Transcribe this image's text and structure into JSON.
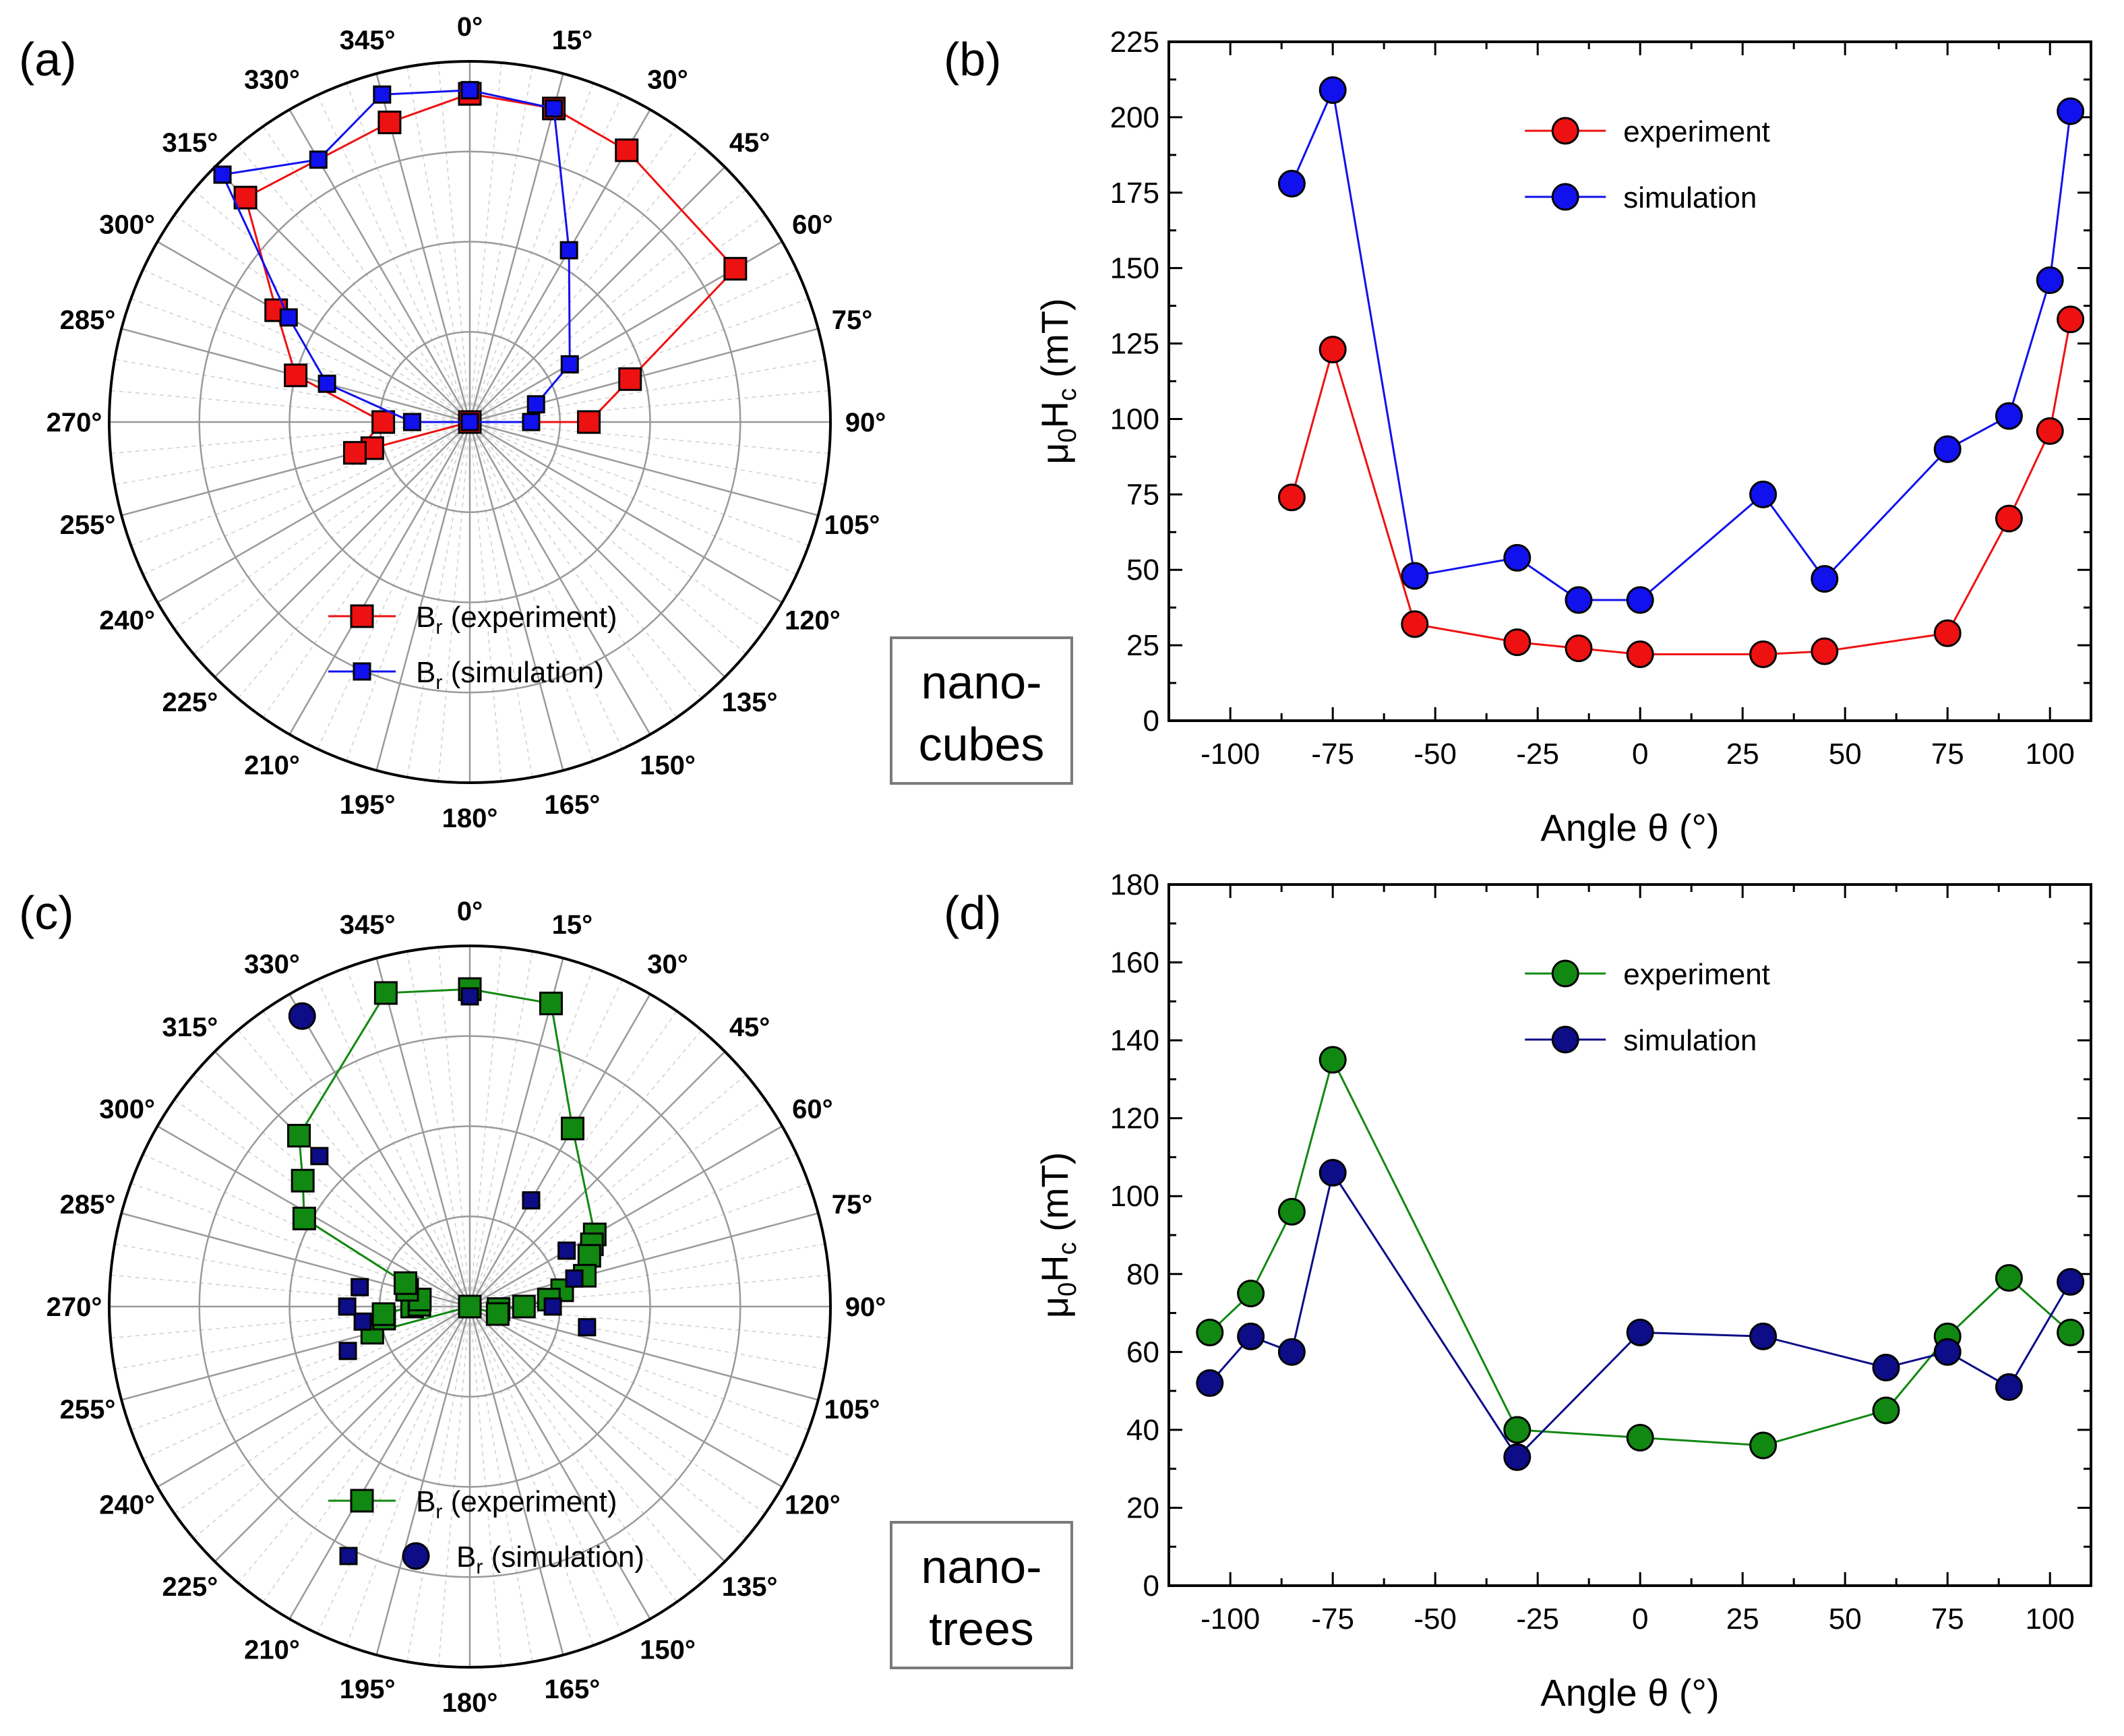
{
  "figure": {
    "panels": {
      "a": "(a)",
      "b": "(b)",
      "c": "(c)",
      "d": "(d)"
    },
    "side_labels": [
      {
        "line1": "nano-",
        "line2": "cubes"
      },
      {
        "line1": "nano-",
        "line2": "trees"
      }
    ],
    "colors": {
      "red": "#ee1111",
      "blue": "#1111ee",
      "green": "#118811",
      "navy": "#0d0d88",
      "grid": "#9a9a9a",
      "axis": "#000000"
    }
  },
  "chart_data": [
    {
      "id": "a",
      "type": "polar",
      "angle_labels": [
        "0°",
        "15°",
        "30°",
        "45°",
        "60°",
        "75°",
        "90°",
        "105°",
        "120°",
        "135°",
        "150°",
        "165°",
        "180°",
        "195°",
        "210°",
        "225°",
        "240°",
        "255°",
        "270°",
        "285°",
        "300°",
        "315°",
        "330°",
        "345°"
      ],
      "rmax": 1.0,
      "rings": [
        0.25,
        0.5,
        0.75,
        1.0
      ],
      "legend": {
        "experiment": "B",
        "experiment_sub": "r",
        "experiment_rest": " (experiment)",
        "simulation": "B",
        "simulation_sub": "r",
        "simulation_rest": " (simulation)"
      },
      "series": [
        {
          "name": "Br (experiment)",
          "color": "red",
          "marker": "square",
          "connected": true,
          "theta": [
            0,
            15,
            30,
            60,
            75,
            90,
            180,
            255,
            255,
            270,
            285,
            300,
            315,
            345,
            360
          ],
          "r": [
            0.91,
            0.9,
            0.87,
            0.85,
            0.46,
            0.33,
            0.0,
            0.28,
            0.33,
            0.24,
            0.5,
            0.62,
            0.88,
            0.86,
            0.91
          ]
        },
        {
          "name": "Br (simulation)",
          "color": "blue",
          "marker": "square-small",
          "connected": true,
          "theta": [
            0,
            15,
            30,
            60,
            75,
            90,
            180,
            270,
            285,
            300,
            315,
            330,
            345,
            360
          ],
          "r": [
            0.92,
            0.9,
            0.55,
            0.32,
            0.19,
            0.17,
            0.0,
            0.16,
            0.41,
            0.58,
            0.97,
            0.84,
            0.94,
            0.92
          ]
        }
      ]
    },
    {
      "id": "b",
      "type": "line",
      "xlabel": "Angle θ (°)",
      "ylabel_main": "μ",
      "ylabel_sub0": "0",
      "ylabel_mid": "H",
      "ylabel_subc": "c",
      "ylabel_end": " (mT)",
      "xlim": [
        -115,
        110
      ],
      "ylim": [
        0,
        225
      ],
      "xticks": [
        -100,
        -75,
        -50,
        -25,
        0,
        25,
        50,
        75,
        100
      ],
      "yticks": [
        0,
        25,
        50,
        75,
        100,
        125,
        150,
        175,
        200,
        225
      ],
      "legend_position": "top-center",
      "series": [
        {
          "name": "experiment",
          "color": "red",
          "x": [
            -85,
            -75,
            -55,
            -30,
            -15,
            0,
            30,
            45,
            75,
            90,
            100,
            105
          ],
          "y": [
            74,
            123,
            32,
            26,
            24,
            22,
            22,
            23,
            29,
            67,
            96,
            133
          ]
        },
        {
          "name": "simulation",
          "color": "blue",
          "x": [
            -85,
            -75,
            -55,
            -30,
            -15,
            0,
            30,
            45,
            75,
            90,
            100,
            105
          ],
          "y": [
            178,
            209,
            48,
            54,
            40,
            40,
            75,
            47,
            90,
            101,
            146,
            202
          ]
        }
      ]
    },
    {
      "id": "c",
      "type": "polar",
      "angle_labels": [
        "0°",
        "15°",
        "30°",
        "45°",
        "60°",
        "75°",
        "90°",
        "105°",
        "120°",
        "135°",
        "150°",
        "165°",
        "180°",
        "195°",
        "210°",
        "225°",
        "240°",
        "255°",
        "270°",
        "285°",
        "300°",
        "315°",
        "330°",
        "345°"
      ],
      "rmax": 1.0,
      "rings": [
        0.25,
        0.5,
        0.75,
        1.0
      ],
      "legend": {
        "experiment": "B",
        "experiment_sub": "r",
        "experiment_rest": " (experiment)",
        "simulation": "B",
        "simulation_sub": "r",
        "simulation_rest": " (simulation)"
      },
      "series": [
        {
          "name": "Br (experiment)",
          "color": "green",
          "marker": "square",
          "connected": true,
          "theta": [
            0,
            15,
            30,
            60,
            63,
            67,
            75,
            80,
            85,
            90,
            95,
            105,
            180,
            255,
            262,
            265,
            270,
            272,
            278,
            285,
            290,
            298,
            307,
            315,
            345,
            360
          ],
          "r": [
            0.88,
            0.87,
            0.57,
            0.4,
            0.38,
            0.36,
            0.33,
            0.26,
            0.22,
            0.15,
            0.08,
            0.08,
            0.0,
            0.28,
            0.24,
            0.24,
            0.16,
            0.14,
            0.14,
            0.18,
            0.19,
            0.52,
            0.58,
            0.67,
            0.9,
            0.88
          ]
        },
        {
          "name": "Br (simulation)",
          "color": "navy",
          "marker": "square-small",
          "connected": false,
          "theta": [
            0,
            30,
            60,
            75,
            90,
            100,
            250,
            262,
            270,
            280,
            315
          ],
          "r": [
            0.86,
            0.34,
            0.31,
            0.3,
            0.23,
            0.33,
            0.36,
            0.3,
            0.34,
            0.31,
            0.59
          ]
        },
        {
          "name": "Br (simulation)",
          "color": "navy",
          "marker": "circle",
          "connected": false,
          "theta": [
            330
          ],
          "r": [
            0.93
          ]
        }
      ]
    },
    {
      "id": "d",
      "type": "line",
      "xlabel": "Angle θ (°)",
      "ylabel_main": "μ",
      "ylabel_sub0": "0",
      "ylabel_mid": "H",
      "ylabel_subc": "c",
      "ylabel_end": " (mT)",
      "xlim": [
        -115,
        110
      ],
      "ylim": [
        0,
        180
      ],
      "xticks": [
        -100,
        -75,
        -50,
        -25,
        0,
        25,
        50,
        75,
        100
      ],
      "yticks": [
        0,
        20,
        40,
        60,
        80,
        100,
        120,
        140,
        160,
        180
      ],
      "legend_position": "top-center",
      "series": [
        {
          "name": "experiment",
          "color": "green",
          "x": [
            -105,
            -95,
            -85,
            -75,
            -30,
            0,
            30,
            60,
            75,
            90,
            105
          ],
          "y": [
            65,
            75,
            96,
            135,
            40,
            38,
            36,
            45,
            64,
            79,
            65
          ]
        },
        {
          "name": "simulation",
          "color": "navy",
          "x": [
            -105,
            -95,
            -85,
            -75,
            -30,
            0,
            30,
            60,
            75,
            90,
            105
          ],
          "y": [
            52,
            64,
            60,
            106,
            33,
            65,
            64,
            56,
            60,
            51,
            78
          ]
        }
      ]
    }
  ]
}
